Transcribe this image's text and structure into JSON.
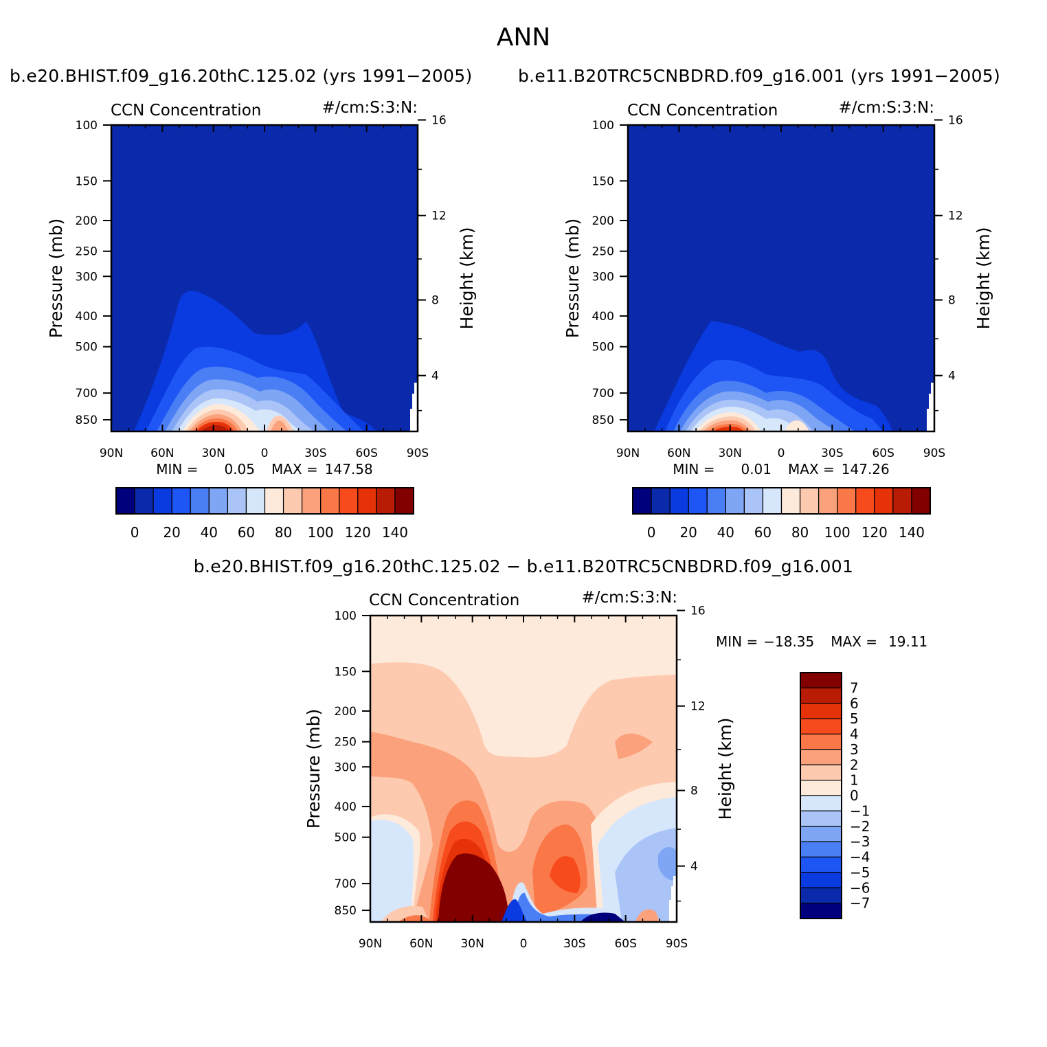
{
  "page": {
    "title": "ANN",
    "run1_title": "b.e20.BHIST.f09_g16.20thC.125.02 (yrs 1991−2005)",
    "run2_title": "b.e11.B20TRC5CNBDRD.f09_g16.001 (yrs 1991−2005)",
    "diff_title": "b.e20.BHIST.f09_g16.20thC.125.02 − b.e11.B20TRC5CNBDRD.f09_g16.001"
  },
  "chart_data": [
    {
      "id": "run1",
      "type": "heatmap",
      "subtitle_left": "CCN Concentration",
      "subtitle_right": "#/cm:S:3:N:",
      "ylabel": "Pressure (mb)",
      "ylabel_right": "Height (km)",
      "xticks": [
        "90N",
        "60N",
        "30N",
        "0",
        "30S",
        "60S",
        "90S"
      ],
      "yticks": [
        "100",
        "150",
        "200",
        "250",
        "300",
        "400",
        "500",
        "700",
        "850"
      ],
      "yticks_right": [
        "16",
        "12",
        "8",
        "4"
      ],
      "stats": {
        "min_label": "MIN =",
        "min": "0.05",
        "max_label": "MAX =",
        "max": "147.58"
      },
      "colorbar": {
        "orientation": "horizontal",
        "labels": [
          "0",
          "20",
          "40",
          "60",
          "80",
          "100",
          "120",
          "140"
        ],
        "colors": [
          "#00007c",
          "#0a2aab",
          "#0a3be0",
          "#1e55f5",
          "#4a7ef5",
          "#7fa5f5",
          "#aac4f8",
          "#d6e6fb",
          "#feeadb",
          "#fdcab0",
          "#fba27c",
          "#fa7748",
          "#f84b1d",
          "#e63208",
          "#b81c05",
          "#820000"
        ]
      },
      "field": {
        "x": [
          "90N",
          "30N",
          "0",
          "30S",
          "60S"
        ],
        "peak_value_approx": 147.58,
        "peak_lat": "30N",
        "peak_level_mb": 900
      }
    },
    {
      "id": "run2",
      "type": "heatmap",
      "subtitle_left": "CCN Concentration",
      "subtitle_right": "#/cm:S:3:N:",
      "ylabel": "Pressure (mb)",
      "ylabel_right": "Height (km)",
      "xticks": [
        "90N",
        "60N",
        "30N",
        "0",
        "30S",
        "60S",
        "90S"
      ],
      "yticks": [
        "100",
        "150",
        "200",
        "250",
        "300",
        "400",
        "500",
        "700",
        "850"
      ],
      "yticks_right": [
        "16",
        "12",
        "8",
        "4"
      ],
      "stats": {
        "min_label": "MIN =",
        "min": "0.01",
        "max_label": "MAX =",
        "max": "147.26"
      },
      "colorbar": {
        "orientation": "horizontal",
        "labels": [
          "0",
          "20",
          "40",
          "60",
          "80",
          "100",
          "120",
          "140"
        ],
        "colors": [
          "#00007c",
          "#0a2aab",
          "#0a3be0",
          "#1e55f5",
          "#4a7ef5",
          "#7fa5f5",
          "#aac4f8",
          "#d6e6fb",
          "#feeadb",
          "#fdcab0",
          "#fba27c",
          "#fa7748",
          "#f84b1d",
          "#e63208",
          "#b81c05",
          "#820000"
        ]
      },
      "field": {
        "peak_value_approx": 147.26,
        "peak_lat": "30N",
        "peak_level_mb": 900
      }
    },
    {
      "id": "diff",
      "type": "heatmap",
      "subtitle_left": "CCN Concentration",
      "subtitle_right": "#/cm:S:3:N:",
      "ylabel": "Pressure (mb)",
      "ylabel_right": "Height (km)",
      "xticks": [
        "90N",
        "60N",
        "30N",
        "0",
        "30S",
        "60S",
        "90S"
      ],
      "yticks": [
        "100",
        "150",
        "200",
        "250",
        "300",
        "400",
        "500",
        "700",
        "850"
      ],
      "yticks_right": [
        "16",
        "12",
        "8",
        "4"
      ],
      "stats": {
        "min_label": "MIN =",
        "min": "−18.35",
        "max_label": "MAX =",
        "max": "19.11"
      },
      "colorbar": {
        "orientation": "vertical",
        "labels": [
          "7",
          "6",
          "5",
          "4",
          "3",
          "2",
          "1",
          "0",
          "−1",
          "−2",
          "−3",
          "−4",
          "−5",
          "−6",
          "−7"
        ],
        "colors": [
          "#820000",
          "#b81c05",
          "#e63208",
          "#f84b1d",
          "#fa7748",
          "#fba27c",
          "#fdcab0",
          "#feeadb",
          "#d6e6fb",
          "#aac4f8",
          "#7fa5f5",
          "#4a7ef5",
          "#1e55f5",
          "#0a3be0",
          "#0a2aab",
          "#00007c"
        ]
      }
    }
  ]
}
